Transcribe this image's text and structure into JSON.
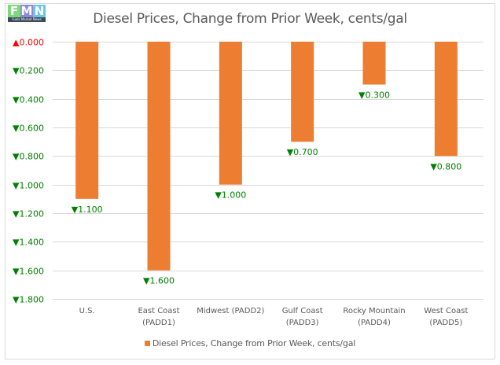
{
  "logo": {
    "letters": [
      "F",
      "M",
      "N"
    ],
    "tagline": "Fuels Market News",
    "colors": [
      "#7dd87a",
      "#8a8ad8",
      "#6cc6e0"
    ]
  },
  "chart_data": {
    "type": "bar",
    "title": "Diesel Prices, Change from Prior Week, cents/gal",
    "categories": [
      "U.S.",
      "East Coast\n(PADD1)",
      "Midwest (PADD2)",
      "Gulf Coast\n(PADD3)",
      "Rocky Mountain\n(PADD4)",
      "West Coast\n(PADD5)"
    ],
    "series": [
      {
        "name": "Diesel Prices, Change from Prior Week, cents/gal",
        "values": [
          -1.1,
          -1.6,
          -1.0,
          -0.7,
          -0.3,
          -0.8
        ],
        "color": "#ed7d31"
      }
    ],
    "data_labels": [
      "▼1.100",
      "▼1.600",
      "▼1.000",
      "▼0.700",
      "▼0.300",
      "▼0.800"
    ],
    "ylim": [
      -1.8,
      0
    ],
    "yticks": [
      0,
      -0.2,
      -0.4,
      -0.6,
      -0.8,
      -1.0,
      -1.2,
      -1.4,
      -1.6,
      -1.8
    ],
    "ytick_labels": [
      "▲0.000",
      "▼0.200",
      "▼0.400",
      "▼0.600",
      "▼0.800",
      "▼1.000",
      "▼1.200",
      "▼1.400",
      "▼1.600",
      "▼1.800"
    ],
    "xlabel": "",
    "ylabel": "",
    "grid": true,
    "legend": "bottom",
    "colors": {
      "up": "#ff0000",
      "down": "#008000",
      "grid": "#d9d9d9",
      "axis_text": "#595959"
    }
  }
}
